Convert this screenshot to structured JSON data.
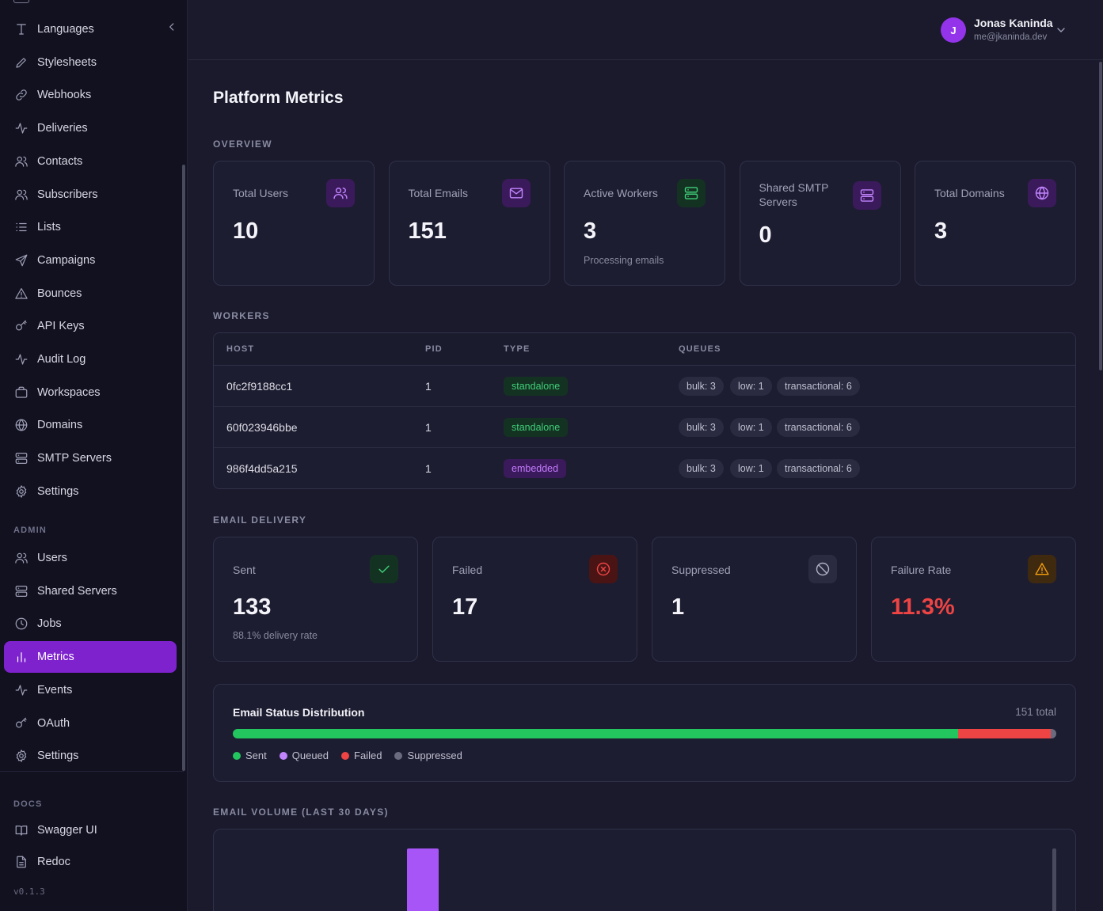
{
  "sidebar": {
    "items": [
      {
        "label": "Languages",
        "icon": "type-icon"
      },
      {
        "label": "Stylesheets",
        "icon": "pen-icon"
      },
      {
        "label": "Webhooks",
        "icon": "link-icon"
      },
      {
        "label": "Deliveries",
        "icon": "activity-icon"
      },
      {
        "label": "Contacts",
        "icon": "users-icon"
      },
      {
        "label": "Subscribers",
        "icon": "users-icon"
      },
      {
        "label": "Lists",
        "icon": "list-icon"
      },
      {
        "label": "Campaigns",
        "icon": "send-icon"
      },
      {
        "label": "Bounces",
        "icon": "alert-triangle-icon"
      },
      {
        "label": "API Keys",
        "icon": "key-icon"
      },
      {
        "label": "Audit Log",
        "icon": "activity-icon"
      },
      {
        "label": "Workspaces",
        "icon": "briefcase-icon"
      },
      {
        "label": "Domains",
        "icon": "globe-icon"
      },
      {
        "label": "SMTP Servers",
        "icon": "server-icon"
      },
      {
        "label": "Settings",
        "icon": "gear-icon"
      }
    ],
    "admin_label": "ADMIN",
    "admin_items": [
      {
        "label": "Users",
        "icon": "users-icon"
      },
      {
        "label": "Shared Servers",
        "icon": "server-icon"
      },
      {
        "label": "Jobs",
        "icon": "clock-icon"
      },
      {
        "label": "Metrics",
        "icon": "bar-chart-icon"
      },
      {
        "label": "Events",
        "icon": "activity-icon"
      },
      {
        "label": "OAuth",
        "icon": "key-icon"
      },
      {
        "label": "Settings",
        "icon": "gear-icon"
      }
    ],
    "docs_label": "DOCS",
    "docs_items": [
      {
        "label": "Swagger UI",
        "icon": "book-icon"
      },
      {
        "label": "Redoc",
        "icon": "file-icon"
      }
    ],
    "version": "v0.1.3",
    "active": "Metrics"
  },
  "user": {
    "initial": "J",
    "name": "Jonas Kaninda",
    "email": "me@jkaninda.dev"
  },
  "page": {
    "title": "Platform Metrics",
    "overview_label": "OVERVIEW",
    "workers_label": "WORKERS",
    "delivery_label": "EMAIL DELIVERY",
    "volume_label": "EMAIL VOLUME (LAST 30 DAYS)"
  },
  "overview": [
    {
      "label": "Total Users",
      "value": "10",
      "icon": "users-icon",
      "sub": ""
    },
    {
      "label": "Total Emails",
      "value": "151",
      "icon": "mail-icon",
      "sub": ""
    },
    {
      "label": "Active Workers",
      "value": "3",
      "icon": "server-icon",
      "sub": "Processing emails"
    },
    {
      "label": "Shared SMTP Servers",
      "value": "0",
      "icon": "server-icon",
      "sub": ""
    },
    {
      "label": "Total Domains",
      "value": "3",
      "icon": "globe-icon",
      "sub": ""
    }
  ],
  "workers": {
    "headers": [
      "HOST",
      "PID",
      "TYPE",
      "QUEUES"
    ],
    "rows": [
      {
        "host": "0fc2f9188cc1",
        "pid": "1",
        "type": "standalone",
        "queues": [
          "bulk: 3",
          "low: 1",
          "transactional: 6"
        ]
      },
      {
        "host": "60f023946bbe",
        "pid": "1",
        "type": "standalone",
        "queues": [
          "bulk: 3",
          "low: 1",
          "transactional: 6"
        ]
      },
      {
        "host": "986f4dd5a215",
        "pid": "1",
        "type": "embedded",
        "queues": [
          "bulk: 3",
          "low: 1",
          "transactional: 6"
        ]
      }
    ]
  },
  "delivery": [
    {
      "label": "Sent",
      "value": "133",
      "sub": "88.1% delivery rate",
      "icon": "check-icon"
    },
    {
      "label": "Failed",
      "value": "17",
      "sub": "",
      "icon": "x-circle-icon"
    },
    {
      "label": "Suppressed",
      "value": "1",
      "sub": "",
      "icon": "ban-icon"
    },
    {
      "label": "Failure Rate",
      "value": "11.3%",
      "sub": "",
      "icon": "alert-triangle-icon"
    }
  ],
  "distribution": {
    "title": "Email Status Distribution",
    "total_label": "151 total",
    "segments": [
      {
        "label": "Sent",
        "count": 133,
        "color": "#22c55e"
      },
      {
        "label": "Queued",
        "count": 0,
        "color": "#c084fc"
      },
      {
        "label": "Failed",
        "count": 17,
        "color": "#ef4444"
      },
      {
        "label": "Suppressed",
        "count": 1,
        "color": "#6b6b80"
      }
    ]
  },
  "colors": {
    "accent": "#7e22ce",
    "failure_rate": "#ef4444"
  }
}
